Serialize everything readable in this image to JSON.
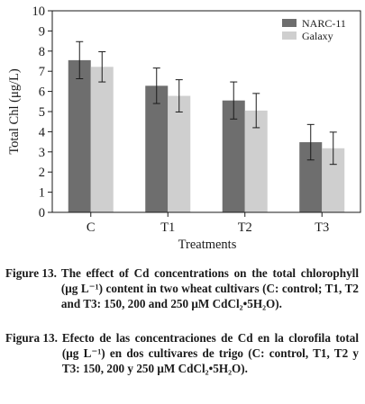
{
  "chart_data": {
    "type": "bar",
    "categories": [
      "C",
      "T1",
      "T2",
      "T3"
    ],
    "series": [
      {
        "name": "NARC-11",
        "values": [
          7.55,
          6.28,
          5.55,
          3.48
        ],
        "errors": [
          0.92,
          0.88,
          0.92,
          0.88
        ],
        "color": "#6e6e6e"
      },
      {
        "name": "Galaxy",
        "values": [
          7.22,
          5.78,
          5.05,
          3.18
        ],
        "errors": [
          0.75,
          0.8,
          0.85,
          0.8
        ],
        "color": "#cfcfcf"
      }
    ],
    "title": "",
    "xlabel": "Treatments",
    "ylabel": "Total Chl (μg/L)",
    "ylim": [
      0,
      10
    ],
    "yticks": [
      0,
      1,
      2,
      3,
      4,
      5,
      6,
      7,
      8,
      9,
      10
    ],
    "grid": false,
    "legend_position": "top-right"
  },
  "captions": {
    "english_label": "Figure 13.",
    "english_text": "The effect of Cd concentrations on the total chlorophyll (μg L⁻¹) content in two wheat cultivars (C: control; T1, T2 and T3: 150, 200 and 250 μM CdCl₂•5H₂O).",
    "spanish_label": "Figura 13.",
    "spanish_text": "Efecto de las concentraciones de Cd en la clorofila total (μg L⁻¹) en dos cultivares de trigo (C: control, T1, T2 y T3: 150, 200 y 250 μM CdCl₂•5H₂O)."
  }
}
